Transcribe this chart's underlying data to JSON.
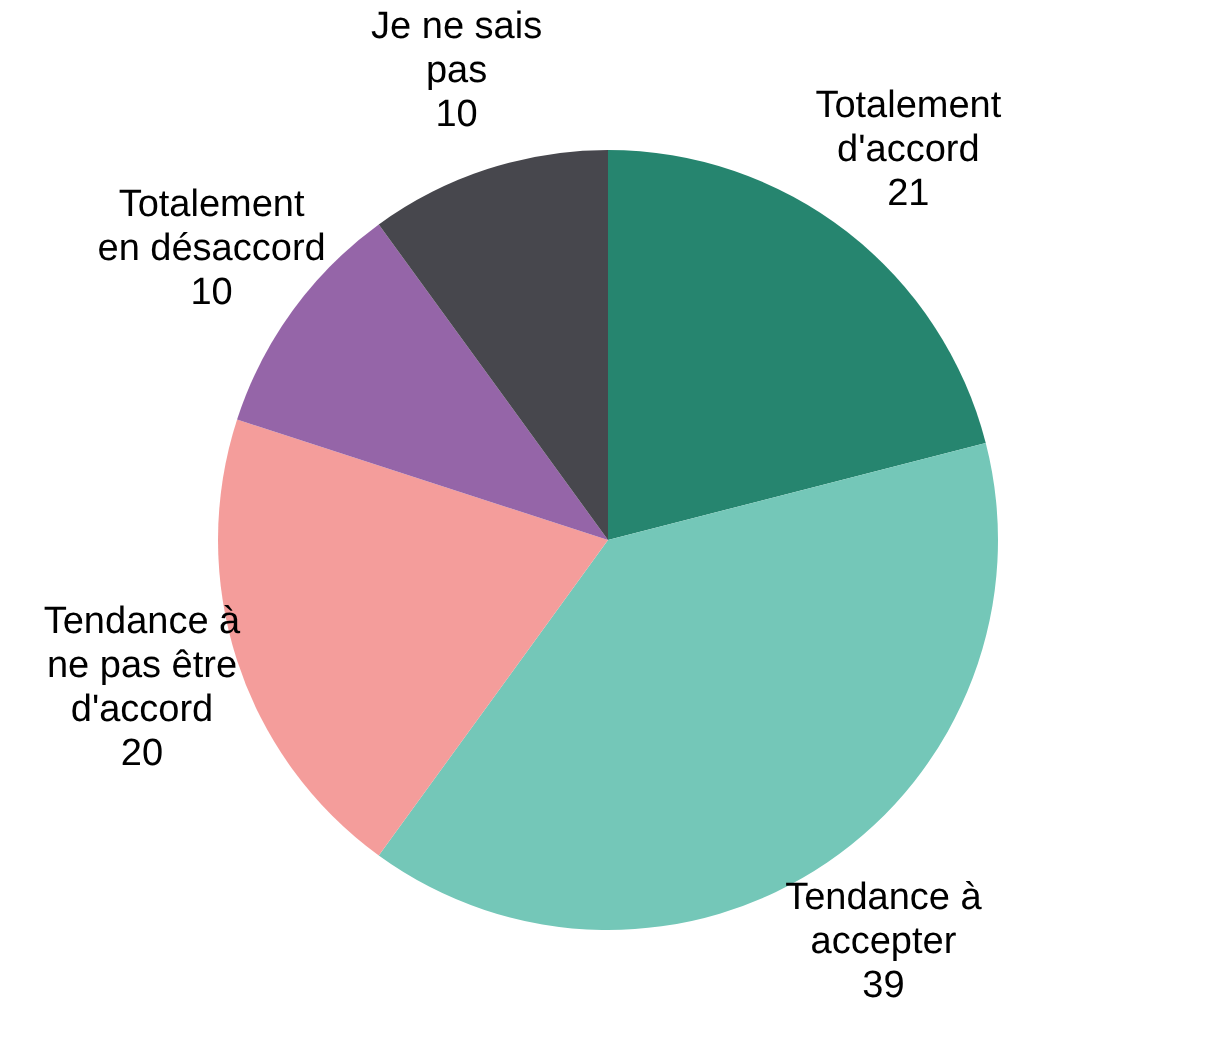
{
  "chart_data": {
    "type": "pie",
    "categories": [
      "Totalement d'accord",
      "Tendance à accepter",
      "Tendance à ne pas être d'accord",
      "Totalement en désaccord",
      "Je ne sais pas"
    ],
    "values": [
      21,
      39,
      20,
      10,
      10
    ],
    "colors": [
      "#26856f",
      "#74c7b8",
      "#f49d9b",
      "#9565a8",
      "#47474d"
    ],
    "data_labels": true,
    "legend": false
  }
}
